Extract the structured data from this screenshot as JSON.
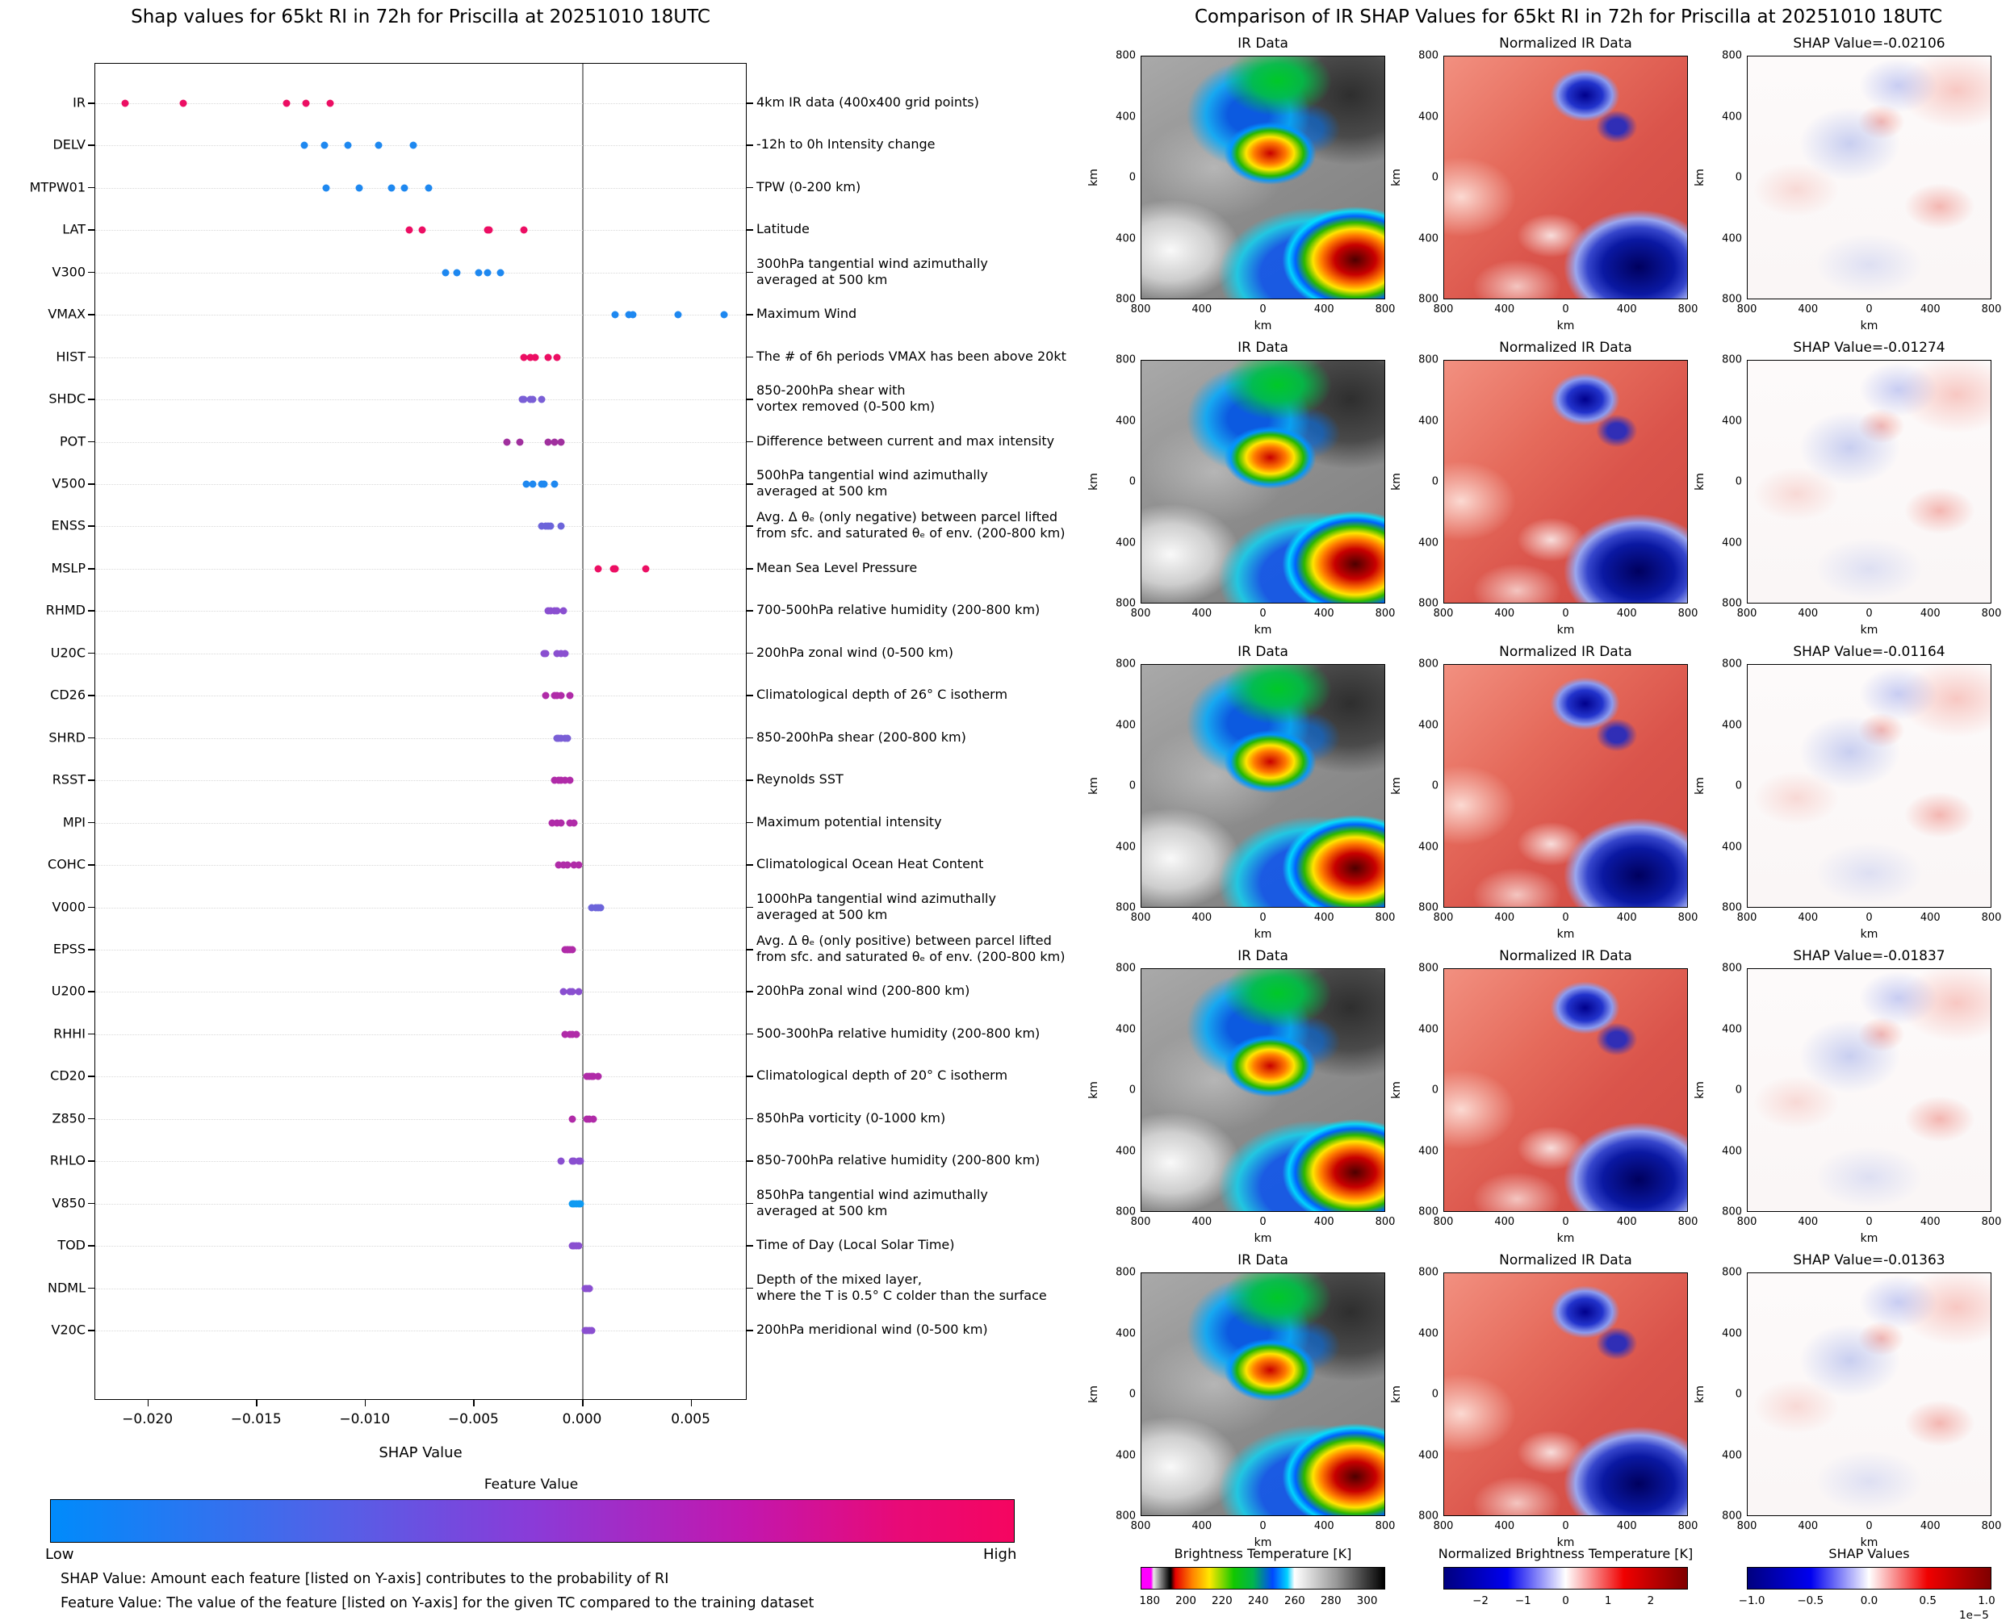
{
  "left_chart": {
    "title": "Shap values for 65kt RI in 72h for Priscilla at 20251010 18UTC",
    "xlabel": "SHAP Value",
    "x_ticks": [
      {
        "label": "−0.020",
        "value": -0.02
      },
      {
        "label": "−0.015",
        "value": -0.015
      },
      {
        "label": "−0.010",
        "value": -0.01
      },
      {
        "label": "−0.005",
        "value": -0.005
      },
      {
        "label": "0.000",
        "value": 0.0
      },
      {
        "label": "0.005",
        "value": 0.005
      }
    ],
    "colorbar": {
      "title": "Feature Value",
      "low_label": "Low",
      "high_label": "High",
      "low_color": "#008bfb",
      "high_color": "#f50560"
    },
    "footnote1": "SHAP Value: Amount each feature [listed on Y-axis] contributes to the probability of RI",
    "footnote2": "Feature Value: The value of the feature [listed on Y-axis] for the given TC compared to the training dataset"
  },
  "right_panel": {
    "title": "Comparison of IR SHAP Values for 65kt RI in 72h for Priscilla at 20251010 18UTC",
    "col_titles": [
      "IR Data",
      "Normalized IR Data"
    ],
    "rows": [
      {
        "shap_label": "SHAP Value=-0.02106",
        "shap_value": -0.02106
      },
      {
        "shap_label": "SHAP Value=-0.01274",
        "shap_value": -0.01274
      },
      {
        "shap_label": "SHAP Value=-0.01164",
        "shap_value": -0.01164
      },
      {
        "shap_label": "SHAP Value=-0.01837",
        "shap_value": -0.01837
      },
      {
        "shap_label": "SHAP Value=-0.01363",
        "shap_value": -0.01363
      }
    ],
    "axis": {
      "x_ticks": [
        "800",
        "400",
        "0",
        "400",
        "800"
      ],
      "y_ticks": [
        "800",
        "400",
        "0",
        "400",
        "800"
      ],
      "unit": "km"
    },
    "colorbars": [
      {
        "title": "Brightness Temperature [K]",
        "ticks": [
          "180",
          "200",
          "220",
          "240",
          "260",
          "280",
          "300"
        ],
        "style": "bt",
        "multiplier": ""
      },
      {
        "title": "Normalized Brightness Temperature [K]",
        "ticks": [
          "−2",
          "−1",
          "0",
          "1",
          "2"
        ],
        "style": "seismic",
        "multiplier": ""
      },
      {
        "title": "SHAP Values",
        "ticks": [
          "−1.0",
          "−0.5",
          "0.0",
          "0.5",
          "1.0"
        ],
        "style": "seismic",
        "multiplier": "1e−5"
      }
    ]
  },
  "chart_data": [
    {
      "type": "scatter",
      "title": "Shap values for 65kt RI in 72h for Priscilla at 20251010 18UTC",
      "xlabel": "SHAP Value",
      "xlim": [
        -0.0225,
        0.0076
      ],
      "grid": true,
      "legend": {
        "title": "Feature Value",
        "low": "Low",
        "high": "High",
        "position": "bottom"
      },
      "features": [
        {
          "label": "IR",
          "desc": "4km IR data (400x400 grid points)",
          "feature_value": "high",
          "color": "#ec0e63",
          "shap_values": [
            -0.02106,
            -0.01837,
            -0.01363,
            -0.01274,
            -0.01164
          ]
        },
        {
          "label": "DELV",
          "desc": "-12h to 0h Intensity change",
          "feature_value": "low",
          "color": "#1e88f0",
          "shap_values": [
            -0.0128,
            -0.0119,
            -0.0108,
            -0.0094,
            -0.0078
          ]
        },
        {
          "label": "MTPW01",
          "desc": "TPW (0-200 km)",
          "feature_value": "low",
          "color": "#1e88f0",
          "shap_values": [
            -0.0118,
            -0.0103,
            -0.0088,
            -0.0082,
            -0.0071
          ]
        },
        {
          "label": "LAT",
          "desc": "Latitude",
          "feature_value": "high",
          "color": "#ec0e63",
          "shap_values": [
            -0.008,
            -0.0074,
            -0.0044,
            -0.0043,
            -0.0027
          ]
        },
        {
          "label": "V300",
          "desc": "300hPa tangential wind azimuthally\naveraged at 500 km",
          "feature_value": "low",
          "color": "#1e88f0",
          "shap_values": [
            -0.0063,
            -0.0058,
            -0.0048,
            -0.0044,
            -0.0038
          ]
        },
        {
          "label": "VMAX",
          "desc": "Maximum Wind",
          "feature_value": "low",
          "color": "#1e88f0",
          "shap_values": [
            0.0015,
            0.0021,
            0.0023,
            0.0044,
            0.0065
          ]
        },
        {
          "label": "HIST",
          "desc": "The # of 6h periods VMAX has been above 20kt",
          "feature_value": "high",
          "color": "#ec0e63",
          "shap_values": [
            -0.0027,
            -0.0024,
            -0.0022,
            -0.0016,
            -0.0012
          ]
        },
        {
          "label": "SHDC",
          "desc": "850-200hPa shear with\nvortex removed (0-500 km)",
          "feature_value": "mid",
          "color": "#7a5fd6",
          "shap_values": [
            -0.0028,
            -0.0027,
            -0.0024,
            -0.0023,
            -0.0019
          ]
        },
        {
          "label": "POT",
          "desc": "Difference between current and max intensity",
          "feature_value": "mid-high",
          "color": "#a0309e",
          "shap_values": [
            -0.0035,
            -0.0029,
            -0.0016,
            -0.0013,
            -0.001
          ]
        },
        {
          "label": "V500",
          "desc": "500hPa tangential wind azimuthally\naveraged at 500 km",
          "feature_value": "low",
          "color": "#1e88f0",
          "shap_values": [
            -0.0026,
            -0.0023,
            -0.0019,
            -0.0018,
            -0.0013
          ]
        },
        {
          "label": "ENSS",
          "desc": "Avg. Δ θₑ (only negative) between parcel lifted\nfrom sfc. and saturated θₑ of env. (200-800 km)",
          "feature_value": "mid-low",
          "color": "#6c64da",
          "shap_values": [
            -0.0019,
            -0.0017,
            -0.0016,
            -0.0015,
            -0.001
          ]
        },
        {
          "label": "MSLP",
          "desc": "Mean Sea Level Pressure",
          "feature_value": "high",
          "color": "#ec0e63",
          "shap_values": [
            0.0007,
            0.0014,
            0.0015,
            0.0015,
            0.0029
          ]
        },
        {
          "label": "RHMD",
          "desc": "700-500hPa relative humidity (200-800 km)",
          "feature_value": "mid",
          "color": "#8a4fd0",
          "shap_values": [
            -0.0016,
            -0.0015,
            -0.0013,
            -0.0012,
            -0.0009
          ]
        },
        {
          "label": "U20C",
          "desc": "200hPa zonal wind (0-500 km)",
          "feature_value": "mid",
          "color": "#8a4fd0",
          "shap_values": [
            -0.0018,
            -0.0017,
            -0.0012,
            -0.001,
            -0.0008
          ]
        },
        {
          "label": "CD26",
          "desc": "Climatological depth of 26° C isotherm",
          "feature_value": "mid-high",
          "color": "#b02ba8",
          "shap_values": [
            -0.0017,
            -0.0013,
            -0.0012,
            -0.001,
            -0.0006
          ]
        },
        {
          "label": "SHRD",
          "desc": "850-200hPa shear (200-800 km)",
          "feature_value": "mid",
          "color": "#7a5fd6",
          "shap_values": [
            -0.0012,
            -0.0011,
            -0.001,
            -0.0008,
            -0.0007
          ]
        },
        {
          "label": "RSST",
          "desc": "Reynolds SST",
          "feature_value": "mid-high",
          "color": "#b02ba8",
          "shap_values": [
            -0.0013,
            -0.0011,
            -0.001,
            -0.0008,
            -0.0006
          ]
        },
        {
          "label": "MPI",
          "desc": "Maximum potential intensity",
          "feature_value": "mid-high",
          "color": "#b02ba8",
          "shap_values": [
            -0.0014,
            -0.0012,
            -0.001,
            -0.0006,
            -0.0004
          ]
        },
        {
          "label": "COHC",
          "desc": "Climatological Ocean Heat Content",
          "feature_value": "mid-high",
          "color": "#b02ba8",
          "shap_values": [
            -0.0011,
            -0.0009,
            -0.0007,
            -0.0004,
            -0.0002
          ]
        },
        {
          "label": "V000",
          "desc": "1000hPa tangential wind azimuthally\naveraged at 500 km",
          "feature_value": "mid-low",
          "color": "#6c64da",
          "shap_values": [
            0.0004,
            0.0006,
            0.0007,
            0.0008
          ]
        },
        {
          "label": "EPSS",
          "desc": "Avg. Δ θₑ (only positive) between parcel lifted\nfrom sfc. and saturated θₑ of env. (200-800 km)",
          "feature_value": "mid-high",
          "color": "#b02ba8",
          "shap_values": [
            -0.0008,
            -0.0007,
            -0.0007,
            -0.0006,
            -0.0005
          ]
        },
        {
          "label": "U200",
          "desc": "200hPa zonal wind (200-800 km)",
          "feature_value": "mid",
          "color": "#8a4fd0",
          "shap_values": [
            -0.0009,
            -0.0006,
            -0.0005,
            -0.0002
          ]
        },
        {
          "label": "RHHI",
          "desc": "500-300hPa relative humidity (200-800 km)",
          "feature_value": "mid-high",
          "color": "#b02ba8",
          "shap_values": [
            -0.0008,
            -0.0006,
            -0.0005,
            -0.0003
          ]
        },
        {
          "label": "CD20",
          "desc": "Climatological depth of 20° C isotherm",
          "feature_value": "mid-high",
          "color": "#b02ba8",
          "shap_values": [
            0.0002,
            0.0003,
            0.0004,
            0.0005,
            0.0007
          ]
        },
        {
          "label": "Z850",
          "desc": "850hPa vorticity (0-1000 km)",
          "feature_value": "mid-high",
          "color": "#b02ba8",
          "shap_values": [
            -0.0005,
            0.0002,
            0.0003,
            0.0005
          ]
        },
        {
          "label": "RHLO",
          "desc": "850-700hPa relative humidity (200-800 km)",
          "feature_value": "mid",
          "color": "#8a4fd0",
          "shap_values": [
            -0.001,
            -0.0005,
            -0.0004,
            -0.0002,
            -0.0001
          ]
        },
        {
          "label": "V850",
          "desc": "850hPa tangential wind azimuthally\naveraged at 500 km",
          "feature_value": "low",
          "color": "#0e9af2",
          "shap_values": [
            -0.0005,
            -0.0004,
            -0.0003,
            -0.0002,
            -0.0001
          ]
        },
        {
          "label": "TOD",
          "desc": "Time of Day (Local Solar Time)",
          "feature_value": "mid",
          "color": "#8a4fd0",
          "shap_values": [
            -0.0005,
            -0.0004,
            -0.0003,
            -0.0002
          ]
        },
        {
          "label": "NDML",
          "desc": "Depth of the mixed layer,\nwhere the T is 0.5° C colder than the surface",
          "feature_value": "mid",
          "color": "#8a4fd0",
          "shap_values": [
            0.0001,
            0.0002,
            0.0003,
            0.0003
          ]
        },
        {
          "label": "V20C",
          "desc": "200hPa meridional wind (0-500 km)",
          "feature_value": "mid",
          "color": "#8a4fd0",
          "shap_values": [
            0.0001,
            0.0002,
            0.0003,
            0.0004
          ]
        }
      ]
    },
    {
      "type": "heatmap",
      "title": "Comparison of IR SHAP Values for 65kt RI in 72h for Priscilla at 20251010 18UTC",
      "grid_shape": "5 rows x 3 columns",
      "columns": [
        "IR Data",
        "Normalized IR Data",
        "SHAP Value map"
      ],
      "row_shap_values": [
        -0.02106,
        -0.01274,
        -0.01164,
        -0.01837,
        -0.01363
      ],
      "axes": {
        "x_ticks": [
          800,
          400,
          0,
          400,
          800
        ],
        "y_ticks": [
          800,
          400,
          0,
          400,
          800
        ],
        "unit": "km"
      },
      "colorbars": [
        {
          "title": "Brightness Temperature [K]",
          "tick_values": [
            180,
            200,
            220,
            240,
            260,
            280,
            300
          ]
        },
        {
          "title": "Normalized Brightness Temperature [K]",
          "tick_values": [
            -2,
            -1,
            0,
            1,
            2
          ]
        },
        {
          "title": "SHAP Values",
          "tick_values": [
            -1.0,
            -0.5,
            0.0,
            0.5,
            1.0
          ],
          "scale": "1e-5"
        }
      ]
    }
  ]
}
